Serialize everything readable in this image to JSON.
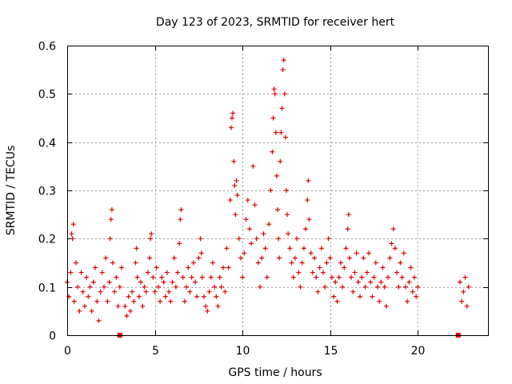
{
  "chart_data": {
    "type": "scatter",
    "title": "Day 123 of 2023, SRMTID for receiver hert",
    "xlabel": "GPS time / hours",
    "ylabel": "SRMTID / TECUs",
    "xlim": [
      0,
      24
    ],
    "ylim": [
      0,
      0.6
    ],
    "xticks": [
      0,
      5,
      10,
      15,
      20
    ],
    "xtick_labels": [
      "0",
      "5",
      "10",
      "15",
      "20"
    ],
    "yticks": [
      0,
      0.1,
      0.2,
      0.3,
      0.4,
      0.5,
      0.6
    ],
    "ytick_labels": [
      "0",
      "0.1",
      "0.2",
      "0.3",
      "0.4",
      "0.5",
      "0.6"
    ],
    "grid": true,
    "marker": "+",
    "color": "#e00000",
    "series": [
      {
        "name": "SRMTID",
        "points": [
          [
            0.0,
            0.11
          ],
          [
            0.1,
            0.08
          ],
          [
            0.2,
            0.13
          ],
          [
            0.25,
            0.21
          ],
          [
            0.3,
            0.2
          ],
          [
            0.35,
            0.23
          ],
          [
            0.4,
            0.07
          ],
          [
            0.5,
            0.15
          ],
          [
            0.6,
            0.1
          ],
          [
            0.7,
            0.05
          ],
          [
            0.8,
            0.13
          ],
          [
            0.9,
            0.09
          ],
          [
            1.0,
            0.06
          ],
          [
            1.1,
            0.12
          ],
          [
            1.2,
            0.08
          ],
          [
            1.3,
            0.1
          ],
          [
            1.4,
            0.05
          ],
          [
            1.5,
            0.11
          ],
          [
            1.6,
            0.14
          ],
          [
            1.7,
            0.07
          ],
          [
            1.8,
            0.03
          ],
          [
            1.9,
            0.09
          ],
          [
            2.0,
            0.13
          ],
          [
            2.1,
            0.1
          ],
          [
            2.2,
            0.16
          ],
          [
            2.3,
            0.07
          ],
          [
            2.4,
            0.11
          ],
          [
            2.45,
            0.2
          ],
          [
            2.5,
            0.24
          ],
          [
            2.55,
            0.26
          ],
          [
            2.6,
            0.15
          ],
          [
            2.7,
            0.09
          ],
          [
            2.8,
            0.12
          ],
          [
            2.9,
            0.06
          ],
          [
            3.0,
            0.1
          ],
          [
            3.1,
            0.14
          ],
          [
            3.3,
            0.06
          ],
          [
            3.4,
            0.04
          ],
          [
            3.5,
            0.08
          ],
          [
            3.6,
            0.05
          ],
          [
            3.7,
            0.09
          ],
          [
            3.8,
            0.07
          ],
          [
            3.9,
            0.15
          ],
          [
            3.95,
            0.18
          ],
          [
            4.0,
            0.12
          ],
          [
            4.1,
            0.08
          ],
          [
            4.2,
            0.11
          ],
          [
            4.3,
            0.06
          ],
          [
            4.4,
            0.1
          ],
          [
            4.5,
            0.09
          ],
          [
            4.6,
            0.13
          ],
          [
            4.7,
            0.16
          ],
          [
            4.75,
            0.2
          ],
          [
            4.8,
            0.21
          ],
          [
            4.9,
            0.12
          ],
          [
            5.0,
            0.09
          ],
          [
            5.1,
            0.14
          ],
          [
            5.2,
            0.1
          ],
          [
            5.3,
            0.07
          ],
          [
            5.4,
            0.12
          ],
          [
            5.5,
            0.11
          ],
          [
            5.6,
            0.08
          ],
          [
            5.7,
            0.13
          ],
          [
            5.8,
            0.09
          ],
          [
            5.9,
            0.07
          ],
          [
            6.0,
            0.11
          ],
          [
            6.1,
            0.16
          ],
          [
            6.2,
            0.1
          ],
          [
            6.3,
            0.13
          ],
          [
            6.4,
            0.19
          ],
          [
            6.45,
            0.24
          ],
          [
            6.5,
            0.26
          ],
          [
            6.6,
            0.12
          ],
          [
            6.7,
            0.07
          ],
          [
            6.8,
            0.1
          ],
          [
            6.9,
            0.14
          ],
          [
            7.0,
            0.09
          ],
          [
            7.1,
            0.12
          ],
          [
            7.2,
            0.15
          ],
          [
            7.3,
            0.11
          ],
          [
            7.4,
            0.08
          ],
          [
            7.5,
            0.16
          ],
          [
            7.6,
            0.2
          ],
          [
            7.65,
            0.17
          ],
          [
            7.7,
            0.12
          ],
          [
            7.8,
            0.08
          ],
          [
            7.9,
            0.06
          ],
          [
            8.0,
            0.05
          ],
          [
            8.1,
            0.09
          ],
          [
            8.2,
            0.12
          ],
          [
            8.3,
            0.15
          ],
          [
            8.4,
            0.1
          ],
          [
            8.5,
            0.08
          ],
          [
            8.6,
            0.06
          ],
          [
            8.7,
            0.12
          ],
          [
            8.8,
            0.1
          ],
          [
            8.9,
            0.14
          ],
          [
            9.0,
            0.09
          ],
          [
            9.1,
            0.18
          ],
          [
            9.2,
            0.14
          ],
          [
            9.3,
            0.28
          ],
          [
            9.35,
            0.43
          ],
          [
            9.4,
            0.45
          ],
          [
            9.45,
            0.46
          ],
          [
            9.5,
            0.36
          ],
          [
            9.55,
            0.31
          ],
          [
            9.6,
            0.25
          ],
          [
            9.65,
            0.32
          ],
          [
            9.7,
            0.29
          ],
          [
            9.8,
            0.2
          ],
          [
            9.9,
            0.16
          ],
          [
            10.0,
            0.12
          ],
          [
            10.1,
            0.17
          ],
          [
            10.2,
            0.24
          ],
          [
            10.3,
            0.28
          ],
          [
            10.4,
            0.22
          ],
          [
            10.5,
            0.19
          ],
          [
            10.6,
            0.35
          ],
          [
            10.7,
            0.27
          ],
          [
            10.8,
            0.2
          ],
          [
            10.9,
            0.15
          ],
          [
            11.0,
            0.1
          ],
          [
            11.1,
            0.16
          ],
          [
            11.2,
            0.21
          ],
          [
            11.3,
            0.18
          ],
          [
            11.4,
            0.12
          ],
          [
            11.5,
            0.23
          ],
          [
            11.6,
            0.3
          ],
          [
            11.7,
            0.38
          ],
          [
            11.75,
            0.45
          ],
          [
            11.8,
            0.51
          ],
          [
            11.85,
            0.5
          ],
          [
            11.9,
            0.42
          ],
          [
            11.95,
            0.33
          ],
          [
            12.0,
            0.26
          ],
          [
            12.05,
            0.2
          ],
          [
            12.1,
            0.16
          ],
          [
            12.15,
            0.36
          ],
          [
            12.2,
            0.42
          ],
          [
            12.25,
            0.47
          ],
          [
            12.3,
            0.55
          ],
          [
            12.35,
            0.57
          ],
          [
            12.4,
            0.5
          ],
          [
            12.45,
            0.41
          ],
          [
            12.5,
            0.3
          ],
          [
            12.55,
            0.25
          ],
          [
            12.6,
            0.21
          ],
          [
            12.7,
            0.18
          ],
          [
            12.8,
            0.15
          ],
          [
            12.9,
            0.12
          ],
          [
            13.0,
            0.16
          ],
          [
            13.1,
            0.2
          ],
          [
            13.2,
            0.13
          ],
          [
            13.3,
            0.1
          ],
          [
            13.4,
            0.15
          ],
          [
            13.5,
            0.18
          ],
          [
            13.6,
            0.22
          ],
          [
            13.7,
            0.28
          ],
          [
            13.75,
            0.32
          ],
          [
            13.8,
            0.24
          ],
          [
            13.9,
            0.17
          ],
          [
            14.0,
            0.13
          ],
          [
            14.1,
            0.16
          ],
          [
            14.2,
            0.12
          ],
          [
            14.3,
            0.09
          ],
          [
            14.4,
            0.14
          ],
          [
            14.5,
            0.18
          ],
          [
            14.6,
            0.13
          ],
          [
            14.7,
            0.1
          ],
          [
            14.8,
            0.15
          ],
          [
            14.9,
            0.2
          ],
          [
            15.0,
            0.16
          ],
          [
            15.1,
            0.12
          ],
          [
            15.2,
            0.08
          ],
          [
            15.3,
            0.11
          ],
          [
            15.4,
            0.07
          ],
          [
            15.5,
            0.12
          ],
          [
            15.6,
            0.15
          ],
          [
            15.7,
            0.1
          ],
          [
            15.8,
            0.14
          ],
          [
            15.9,
            0.18
          ],
          [
            16.0,
            0.22
          ],
          [
            16.05,
            0.25
          ],
          [
            16.1,
            0.16
          ],
          [
            16.2,
            0.12
          ],
          [
            16.3,
            0.09
          ],
          [
            16.4,
            0.13
          ],
          [
            16.5,
            0.17
          ],
          [
            16.6,
            0.11
          ],
          [
            16.7,
            0.08
          ],
          [
            16.8,
            0.12
          ],
          [
            16.9,
            0.16
          ],
          [
            17.0,
            0.1
          ],
          [
            17.1,
            0.13
          ],
          [
            17.2,
            0.17
          ],
          [
            17.3,
            0.11
          ],
          [
            17.4,
            0.08
          ],
          [
            17.5,
            0.12
          ],
          [
            17.6,
            0.15
          ],
          [
            17.7,
            0.1
          ],
          [
            17.8,
            0.07
          ],
          [
            17.9,
            0.11
          ],
          [
            18.0,
            0.14
          ],
          [
            18.1,
            0.1
          ],
          [
            18.2,
            0.06
          ],
          [
            18.3,
            0.12
          ],
          [
            18.4,
            0.16
          ],
          [
            18.5,
            0.19
          ],
          [
            18.6,
            0.22
          ],
          [
            18.7,
            0.18
          ],
          [
            18.8,
            0.13
          ],
          [
            18.9,
            0.1
          ],
          [
            19.0,
            0.15
          ],
          [
            19.1,
            0.12
          ],
          [
            19.2,
            0.17
          ],
          [
            19.3,
            0.1
          ],
          [
            19.4,
            0.07
          ],
          [
            19.5,
            0.11
          ],
          [
            19.6,
            0.14
          ],
          [
            19.7,
            0.09
          ],
          [
            19.8,
            0.12
          ],
          [
            19.9,
            0.08
          ],
          [
            20.0,
            0.1
          ],
          [
            22.4,
            0.11
          ],
          [
            22.5,
            0.07
          ],
          [
            22.6,
            0.09
          ],
          [
            22.7,
            0.12
          ],
          [
            22.8,
            0.06
          ],
          [
            22.9,
            0.1
          ]
        ]
      },
      {
        "name": "zero markers",
        "marker": "square",
        "points": [
          [
            3.0,
            0.0
          ],
          [
            22.3,
            0.0
          ]
        ]
      }
    ]
  }
}
